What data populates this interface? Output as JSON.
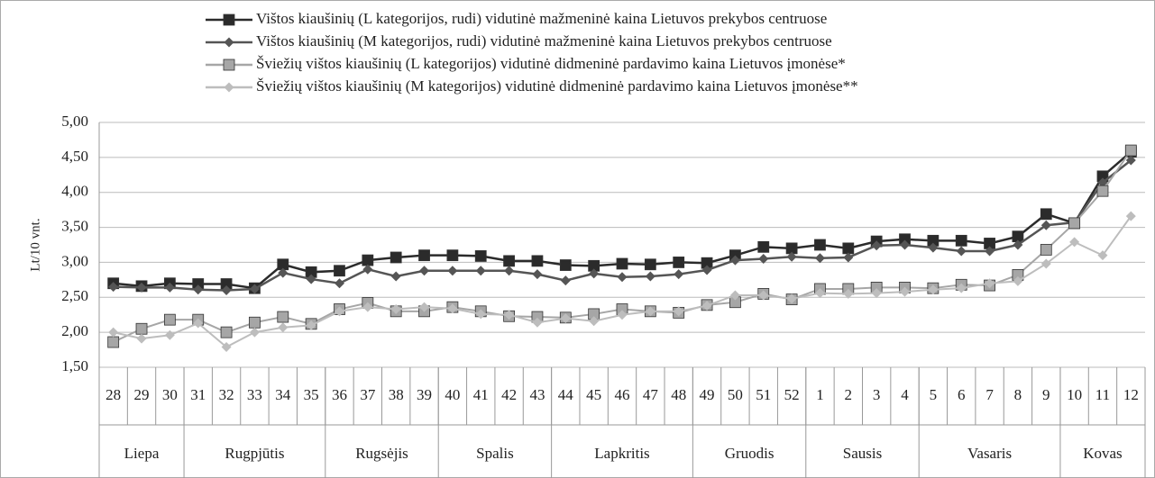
{
  "chart_data": {
    "type": "line",
    "ylabel": "Lt/10 vnt.",
    "categories": [
      "28",
      "29",
      "30",
      "31",
      "32",
      "33",
      "34",
      "35",
      "36",
      "37",
      "38",
      "39",
      "40",
      "41",
      "42",
      "43",
      "44",
      "45",
      "46",
      "47",
      "48",
      "49",
      "50",
      "51",
      "52",
      "1",
      "2",
      "3",
      "4",
      "5",
      "6",
      "7",
      "8",
      "9",
      "10",
      "11",
      "12"
    ],
    "month_groups": [
      {
        "name": "Liepa",
        "count": 3
      },
      {
        "name": "Rugpjūtis",
        "count": 5
      },
      {
        "name": "Rugsėjis",
        "count": 4
      },
      {
        "name": "Spalis",
        "count": 4
      },
      {
        "name": "Lapkritis",
        "count": 5
      },
      {
        "name": "Gruodis",
        "count": 4
      },
      {
        "name": "Sausis",
        "count": 4
      },
      {
        "name": "Vasaris",
        "count": 5
      },
      {
        "name": "Kovas",
        "count": 3
      }
    ],
    "ylim": [
      1.5,
      5
    ],
    "yticks": [
      {
        "value": 1.5,
        "label": "1,50"
      },
      {
        "value": 2,
        "label": "2,00"
      },
      {
        "value": 2.5,
        "label": "2,50"
      },
      {
        "value": 3,
        "label": "3,00"
      },
      {
        "value": 3.5,
        "label": "3,50"
      },
      {
        "value": 4,
        "label": "4,00"
      },
      {
        "value": 4.5,
        "label": "4,50"
      },
      {
        "value": 5,
        "label": "5,00"
      }
    ],
    "grid": true,
    "series": [
      {
        "name": "Vištos kiaušinių (L kategorijos, rudi) vidutinė mažmeninė kaina Lietuvos prekybos centruose",
        "color": "#2b2b2b",
        "marker": "square",
        "values": [
          2.7,
          2.66,
          2.7,
          2.69,
          2.69,
          2.63,
          2.97,
          2.86,
          2.88,
          3.03,
          3.07,
          3.1,
          3.1,
          3.09,
          3.02,
          3.02,
          2.96,
          2.95,
          2.98,
          2.97,
          3.0,
          2.99,
          3.1,
          3.22,
          3.2,
          3.25,
          3.2,
          3.3,
          3.33,
          3.31,
          3.31,
          3.27,
          3.37,
          3.69,
          3.56,
          4.23,
          4.58
        ]
      },
      {
        "name": "Vištos kiaušinių (M kategorijos, rudi) vidutinė mažmeninė  kaina Lietuvos prekybos centruose",
        "color": "#555555",
        "marker": "diamond",
        "values": [
          2.65,
          2.64,
          2.64,
          2.61,
          2.6,
          2.62,
          2.85,
          2.76,
          2.7,
          2.9,
          2.8,
          2.88,
          2.88,
          2.88,
          2.88,
          2.83,
          2.74,
          2.84,
          2.79,
          2.8,
          2.83,
          2.89,
          3.03,
          3.05,
          3.08,
          3.06,
          3.07,
          3.24,
          3.25,
          3.21,
          3.16,
          3.16,
          3.25,
          3.53,
          3.57,
          4.14,
          4.46
        ]
      },
      {
        "name": "Šviežių vištos kiaušinių (L kategorijos)  vidutinė didmeninė pardavimo kaina Lietuvos įmonėse*",
        "color": "#a6a6a6",
        "marker": "square",
        "values": [
          1.86,
          2.05,
          2.18,
          2.18,
          2.0,
          2.14,
          2.22,
          2.12,
          2.33,
          2.42,
          2.3,
          2.3,
          2.36,
          2.3,
          2.23,
          2.22,
          2.21,
          2.26,
          2.33,
          2.3,
          2.28,
          2.39,
          2.43,
          2.55,
          2.47,
          2.62,
          2.62,
          2.64,
          2.64,
          2.63,
          2.68,
          2.67,
          2.82,
          3.18,
          3.56,
          4.02,
          4.6
        ]
      },
      {
        "name": "Šviežių vištos kiaušinių (M kategorijos) vidutinė didmeninė pardavimo kaina Lietuvos įmonėse**",
        "color": "#bdbdbd",
        "marker": "diamond",
        "values": [
          2.0,
          1.91,
          1.96,
          2.13,
          1.79,
          2.0,
          2.07,
          2.1,
          2.3,
          2.36,
          2.33,
          2.36,
          2.34,
          2.26,
          2.25,
          2.14,
          2.2,
          2.16,
          2.25,
          2.3,
          2.3,
          2.38,
          2.53,
          2.53,
          2.48,
          2.56,
          2.55,
          2.56,
          2.58,
          2.61,
          2.63,
          2.7,
          2.73,
          2.98,
          3.29,
          3.1,
          3.66
        ]
      }
    ]
  }
}
